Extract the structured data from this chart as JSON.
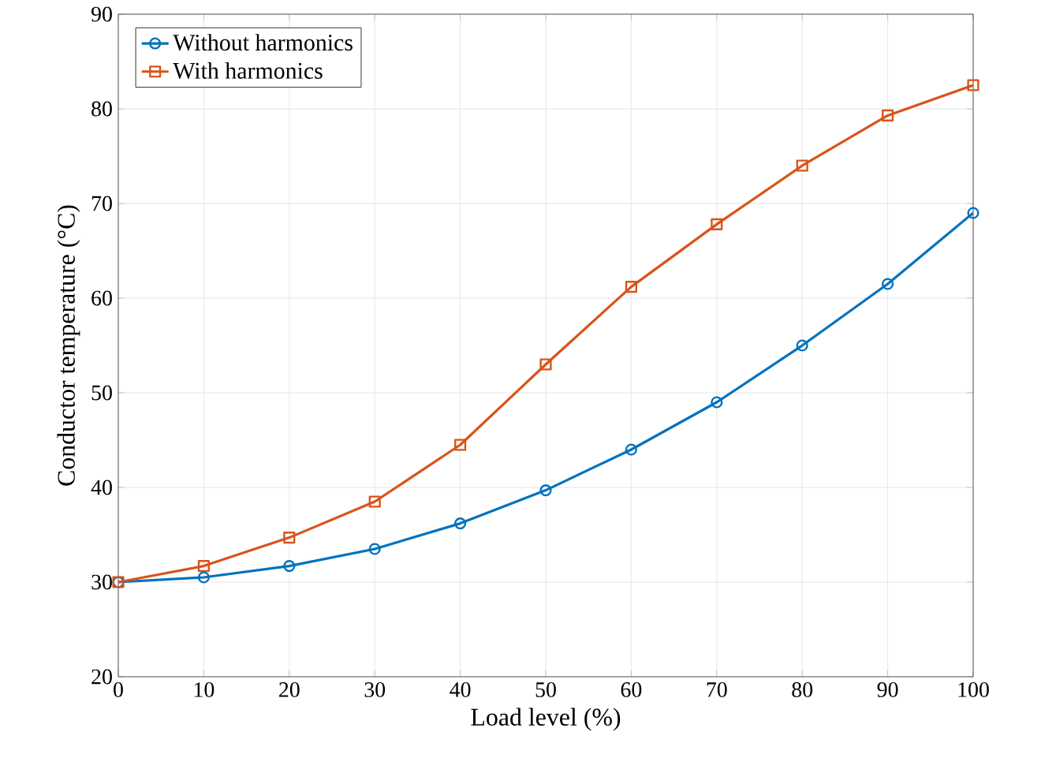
{
  "chart_data": {
    "type": "line",
    "xlabel": "Load level (%)",
    "ylabel": "Conductor temperature (°C)",
    "x": [
      0,
      10,
      20,
      30,
      40,
      50,
      60,
      70,
      80,
      90,
      100
    ],
    "series": [
      {
        "name": "Without harmonics",
        "color": "#0072bd",
        "marker": "circle",
        "values": [
          30,
          30.5,
          31.7,
          33.5,
          36.2,
          39.7,
          44,
          49,
          55,
          61.5,
          69
        ]
      },
      {
        "name": "With harmonics",
        "color": "#d95319",
        "marker": "square",
        "values": [
          30,
          31.7,
          34.7,
          38.5,
          44.5,
          53,
          61.2,
          67.8,
          74,
          79.3,
          82.5
        ]
      }
    ],
    "xlim": [
      0,
      100
    ],
    "ylim": [
      20,
      90
    ],
    "xticks": [
      0,
      10,
      20,
      30,
      40,
      50,
      60,
      70,
      80,
      90,
      100
    ],
    "yticks": [
      20,
      30,
      40,
      50,
      60,
      70,
      80,
      90
    ],
    "grid": true,
    "legend": "top left",
    "line_style": "solid"
  }
}
